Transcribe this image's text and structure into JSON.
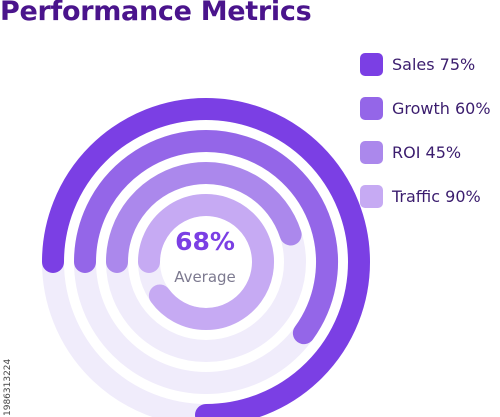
{
  "chart_data": {
    "type": "radial_bar",
    "title": "Performance Metrics",
    "unit": "%",
    "max": 100,
    "series": [
      {
        "name": "Sales",
        "value": 75,
        "label": "Sales 75%",
        "color": "#7b3fe4"
      },
      {
        "name": "Growth",
        "value": 60,
        "label": "Growth 60%",
        "color": "#9466e8"
      },
      {
        "name": "ROI",
        "value": 45,
        "label": "ROI 45%",
        "color": "#ab88ec"
      },
      {
        "name": "Traffic",
        "value": 90,
        "label": "Traffic 90%",
        "color": "#c6aaf3"
      }
    ],
    "track_color": "#f0ecfb",
    "center": {
      "value": "68%",
      "label": "Average"
    }
  },
  "credit": "1986313224"
}
